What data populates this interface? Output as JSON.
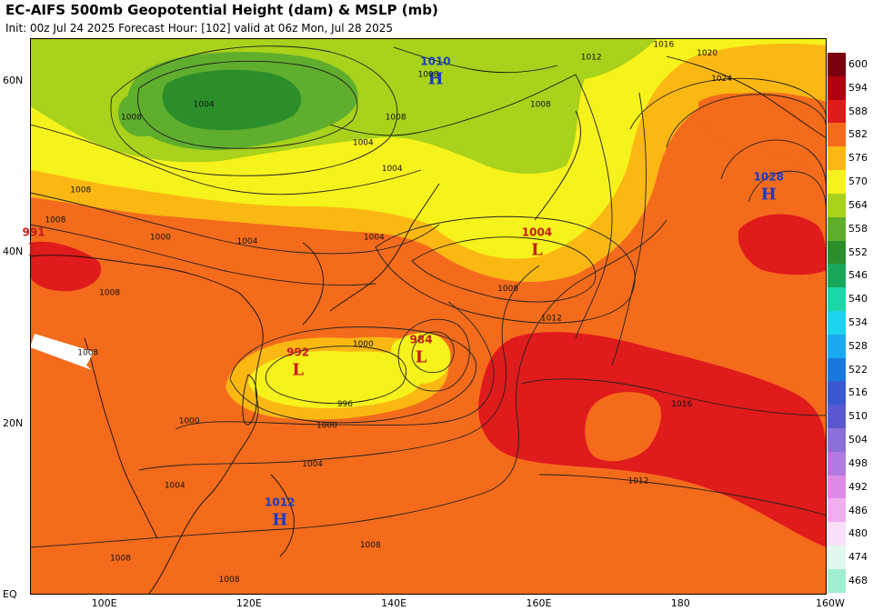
{
  "header": {
    "title": "EC-AIFS 500mb Geopotential Height (dam) & MSLP (mb)",
    "subtitle": "Init: 00z Jul 24 2025   Forecast Hour: [102]   valid at 06z Mon, Jul 28 2025"
  },
  "axes": {
    "lat_labels": [
      {
        "label": "60N",
        "value": 60
      },
      {
        "label": "40N",
        "value": 40
      },
      {
        "label": "20N",
        "value": 20
      },
      {
        "label": "EQ",
        "value": 0
      }
    ],
    "lon_labels": [
      {
        "label": "100E",
        "value": 100
      },
      {
        "label": "120E",
        "value": 120
      },
      {
        "label": "140E",
        "value": 140
      },
      {
        "label": "160E",
        "value": 160
      },
      {
        "label": "180",
        "value": 180
      },
      {
        "label": "160W",
        "value": 200
      }
    ],
    "lon_range": [
      90,
      200
    ],
    "lat_range": [
      0,
      65
    ]
  },
  "colorbar": {
    "levels": [
      {
        "label": "600",
        "color": "#7a0010"
      },
      {
        "label": "594",
        "color": "#b00010"
      },
      {
        "label": "588",
        "color": "#e01b1b"
      },
      {
        "label": "582",
        "color": "#f46b1c"
      },
      {
        "label": "576",
        "color": "#fbb813"
      },
      {
        "label": "570",
        "color": "#f6f21b"
      },
      {
        "label": "564",
        "color": "#a8d21b"
      },
      {
        "label": "558",
        "color": "#5fae2d"
      },
      {
        "label": "552",
        "color": "#2b8e2b"
      },
      {
        "label": "546",
        "color": "#19a85a"
      },
      {
        "label": "540",
        "color": "#18d8a8"
      },
      {
        "label": "534",
        "color": "#1ad4f0"
      },
      {
        "label": "528",
        "color": "#1aa8f0"
      },
      {
        "label": "522",
        "color": "#1878e0"
      },
      {
        "label": "516",
        "color": "#3a58d0"
      },
      {
        "label": "510",
        "color": "#5a58d0"
      },
      {
        "label": "504",
        "color": "#8a70d8"
      },
      {
        "label": "498",
        "color": "#b07ae0"
      },
      {
        "label": "492",
        "color": "#e08ae8"
      },
      {
        "label": "486",
        "color": "#f0b0f0"
      },
      {
        "label": "480",
        "color": "#f8e0f8"
      },
      {
        "label": "474",
        "color": "#e0f8ee"
      },
      {
        "label": "468",
        "color": "#a0f0d0"
      }
    ]
  },
  "pressure_centers": [
    {
      "type": "H",
      "value": "1010",
      "lon": 146,
      "lat": 60.5,
      "color": "#1a3cc8"
    },
    {
      "type": "H",
      "value": "1028",
      "lon": 192,
      "lat": 47,
      "color": "#1a3cc8"
    },
    {
      "type": "L",
      "value": "1004",
      "lon": 160,
      "lat": 40.5,
      "color": "#c81a1a"
    },
    {
      "type": "L",
      "value": "992",
      "lon": 127,
      "lat": 26.5,
      "color": "#c81a1a"
    },
    {
      "type": "L",
      "value": "984",
      "lon": 144,
      "lat": 28,
      "color": "#c81a1a"
    },
    {
      "type": "L",
      "value": "991",
      "lon": 90.5,
      "lat": 40.5,
      "color": "#c81a1a"
    },
    {
      "type": "H",
      "value": "1012",
      "lon": 124.5,
      "lat": 9,
      "color": "#1a3cc8"
    }
  ],
  "isobar_labels": [
    {
      "text": "1004",
      "lon": 114,
      "lat": 57
    },
    {
      "text": "1008",
      "lon": 104,
      "lat": 55.5
    },
    {
      "text": "1008",
      "lon": 145,
      "lat": 60.5
    },
    {
      "text": "1008",
      "lon": 140.5,
      "lat": 55.5
    },
    {
      "text": "1008",
      "lon": 160.5,
      "lat": 57
    },
    {
      "text": "1012",
      "lon": 167.5,
      "lat": 62.5
    },
    {
      "text": "1016",
      "lon": 177.5,
      "lat": 64
    },
    {
      "text": "1020",
      "lon": 183.5,
      "lat": 63
    },
    {
      "text": "1024",
      "lon": 185.5,
      "lat": 60
    },
    {
      "text": "1004",
      "lon": 140,
      "lat": 49.5
    },
    {
      "text": "1004",
      "lon": 136,
      "lat": 52.5
    },
    {
      "text": "1008",
      "lon": 97,
      "lat": 47
    },
    {
      "text": "1000",
      "lon": 108,
      "lat": 41.5
    },
    {
      "text": "1004",
      "lon": 120,
      "lat": 41
    },
    {
      "text": "1004",
      "lon": 137.5,
      "lat": 41.5
    },
    {
      "text": "1008",
      "lon": 101,
      "lat": 35
    },
    {
      "text": "1008",
      "lon": 156,
      "lat": 35.5
    },
    {
      "text": "1012",
      "lon": 162,
      "lat": 32
    },
    {
      "text": "1000",
      "lon": 136,
      "lat": 29
    },
    {
      "text": "996",
      "lon": 133.5,
      "lat": 22
    },
    {
      "text": "1000",
      "lon": 131,
      "lat": 19.5
    },
    {
      "text": "1000",
      "lon": 112,
      "lat": 20
    },
    {
      "text": "1004",
      "lon": 129,
      "lat": 15
    },
    {
      "text": "1004",
      "lon": 110,
      "lat": 12.5
    },
    {
      "text": "1008",
      "lon": 137,
      "lat": 5.5
    },
    {
      "text": "1008",
      "lon": 102.5,
      "lat": 4
    },
    {
      "text": "1008",
      "lon": 117.5,
      "lat": 1.5
    },
    {
      "text": "1016",
      "lon": 180,
      "lat": 22
    },
    {
      "text": "1012",
      "lon": 174,
      "lat": 13
    },
    {
      "text": "1008",
      "lon": 98,
      "lat": 28
    },
    {
      "text": "1008",
      "lon": 93.5,
      "lat": 43.5
    }
  ]
}
